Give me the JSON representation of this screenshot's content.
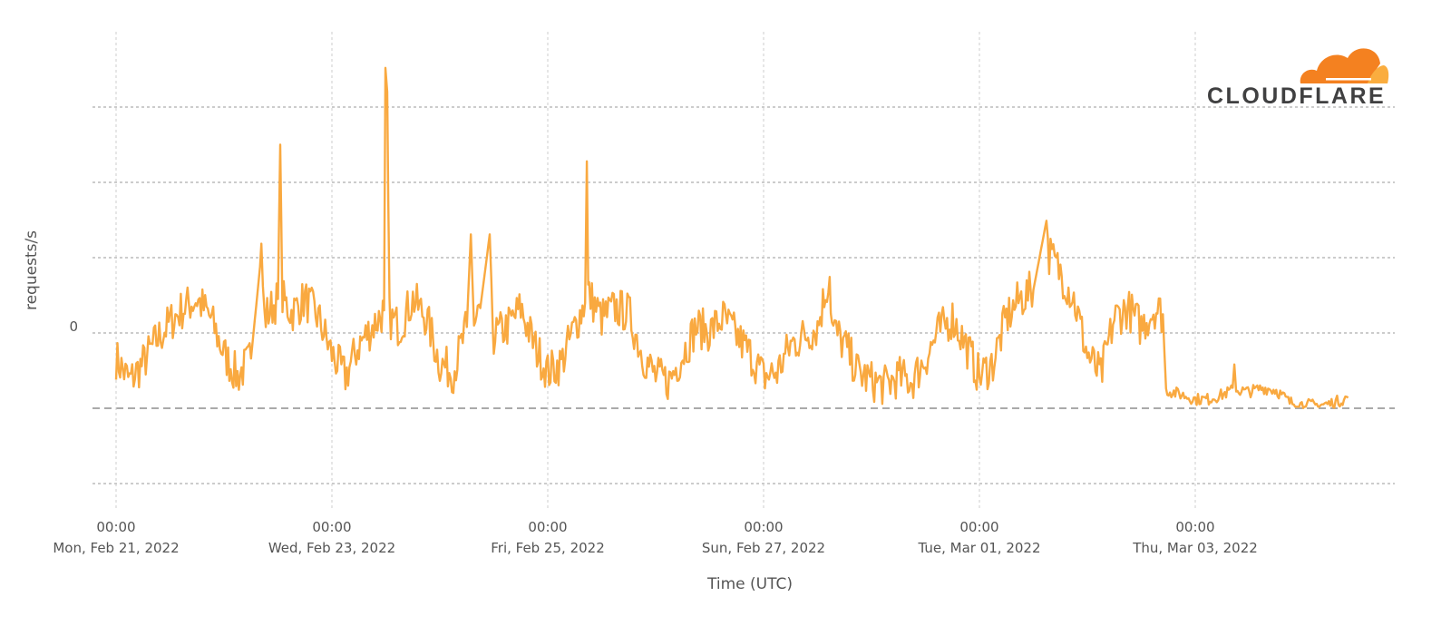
{
  "chart_data": {
    "type": "line",
    "title": "",
    "xlabel": "Time (UTC)",
    "ylabel": "requests/s",
    "y_tick_labels": [
      {
        "value": 0,
        "label": "0"
      }
    ],
    "y_gridlines": [
      3,
      2,
      1,
      0,
      -1,
      -2
    ],
    "baseline": -1,
    "ylim": [
      -2.4,
      3.9
    ],
    "x_unit": "hours since Mon, Feb 21, 2022 00:00 UTC",
    "xlim": [
      -5,
      285
    ],
    "x_ticks": [
      {
        "hours": 0,
        "time": "00:00",
        "date": "Mon, Feb 21, 2022"
      },
      {
        "hours": 48,
        "time": "00:00",
        "date": "Wed, Feb 23, 2022"
      },
      {
        "hours": 96,
        "time": "00:00",
        "date": "Fri, Feb 25, 2022"
      },
      {
        "hours": 144,
        "time": "00:00",
        "date": "Sun, Feb 27, 2022"
      },
      {
        "hours": 192,
        "time": "00:00",
        "date": "Tue, Mar 01, 2022"
      },
      {
        "hours": 240,
        "time": "00:00",
        "date": "Thu, Mar 03, 2022"
      }
    ],
    "grid": true,
    "legend": "none",
    "series": [
      {
        "name": "requests/s",
        "color": "#f9a940",
        "points": [
          [
            0,
            -0.34
          ],
          [
            3,
            -0.64
          ],
          [
            6,
            -0.4
          ],
          [
            9,
            -0.1
          ],
          [
            12,
            0.14
          ],
          [
            15,
            0.33
          ],
          [
            18,
            0.45
          ],
          [
            21,
            0.2
          ],
          [
            24,
            -0.28
          ],
          [
            27,
            -0.58
          ],
          [
            30,
            -0.34
          ],
          [
            32.3,
            1.05
          ],
          [
            33,
            0.2
          ],
          [
            36,
            0.45
          ],
          [
            36.5,
            2.5
          ],
          [
            37,
            0.45
          ],
          [
            39,
            0.27
          ],
          [
            42,
            0.45
          ],
          [
            45,
            0.2
          ],
          [
            48,
            -0.28
          ],
          [
            51,
            -0.58
          ],
          [
            54,
            -0.16
          ],
          [
            57,
            0.08
          ],
          [
            59.6,
            0.3
          ],
          [
            59.9,
            3.52
          ],
          [
            60.3,
            3.2
          ],
          [
            60.8,
            0.2
          ],
          [
            63,
            0.08
          ],
          [
            66,
            0.45
          ],
          [
            69,
            0.2
          ],
          [
            72,
            -0.4
          ],
          [
            75,
            -0.52
          ],
          [
            78,
            0.08
          ],
          [
            78.9,
            1.31
          ],
          [
            79.6,
            0.1
          ],
          [
            81,
            0.33
          ],
          [
            83.1,
            1.31
          ],
          [
            83.8,
            0.1
          ],
          [
            84,
            -0.04
          ],
          [
            87,
            0.08
          ],
          [
            90,
            0.33
          ],
          [
            93,
            -0.16
          ],
          [
            96,
            -0.52
          ],
          [
            99,
            -0.4
          ],
          [
            102,
            0.08
          ],
          [
            104.3,
            0.4
          ],
          [
            104.7,
            2.28
          ],
          [
            105.2,
            0.5
          ],
          [
            105,
            0.57
          ],
          [
            108,
            0.2
          ],
          [
            111,
            0.33
          ],
          [
            114,
            0.27
          ],
          [
            117,
            -0.28
          ],
          [
            120,
            -0.58
          ],
          [
            123,
            -0.64
          ],
          [
            126,
            -0.28
          ],
          [
            129,
            0.08
          ],
          [
            132,
            0.02
          ],
          [
            135,
            0.2
          ],
          [
            138,
            -0.04
          ],
          [
            141,
            -0.28
          ],
          [
            144,
            -0.58
          ],
          [
            147,
            -0.52
          ],
          [
            150,
            -0.16
          ],
          [
            153,
            -0.04
          ],
          [
            156,
            0.08
          ],
          [
            158.7,
            0.78
          ],
          [
            159.2,
            0.08
          ],
          [
            162,
            -0.16
          ],
          [
            165,
            -0.52
          ],
          [
            168,
            -0.64
          ],
          [
            171,
            -0.7
          ],
          [
            174,
            -0.58
          ],
          [
            177,
            -0.64
          ],
          [
            180,
            -0.34
          ],
          [
            183,
            0.02
          ],
          [
            186,
            0.2
          ],
          [
            189,
            -0.16
          ],
          [
            192,
            -0.58
          ],
          [
            195,
            -0.4
          ],
          [
            198,
            0.2
          ],
          [
            201,
            0.45
          ],
          [
            204,
            0.57
          ],
          [
            206.9,
            1.49
          ],
          [
            207.5,
            1.05
          ],
          [
            210,
            0.81
          ],
          [
            213,
            0.45
          ],
          [
            216,
            -0.28
          ],
          [
            219,
            -0.58
          ],
          [
            222,
            0.2
          ],
          [
            225,
            0.33
          ],
          [
            228,
            0.08
          ],
          [
            231,
            0.33
          ],
          [
            232.8,
            0.25
          ],
          [
            233.5,
            -0.76
          ],
          [
            237,
            -0.82
          ],
          [
            240,
            -0.88
          ],
          [
            243,
            -0.88
          ],
          [
            246,
            -0.82
          ],
          [
            248.3,
            -0.76
          ],
          [
            248.7,
            -0.22
          ],
          [
            249.1,
            -0.76
          ],
          [
            252,
            -0.78
          ],
          [
            255,
            -0.73
          ],
          [
            258,
            -0.76
          ],
          [
            261,
            -0.92
          ],
          [
            264,
            -0.95
          ],
          [
            267,
            -0.96
          ],
          [
            270,
            -0.94
          ],
          [
            274,
            -0.86
          ]
        ]
      }
    ]
  },
  "brand": {
    "name": "CLOUDFLARE",
    "primary": "#f48120",
    "secondary": "#faad3f",
    "text_color": "#404041"
  }
}
